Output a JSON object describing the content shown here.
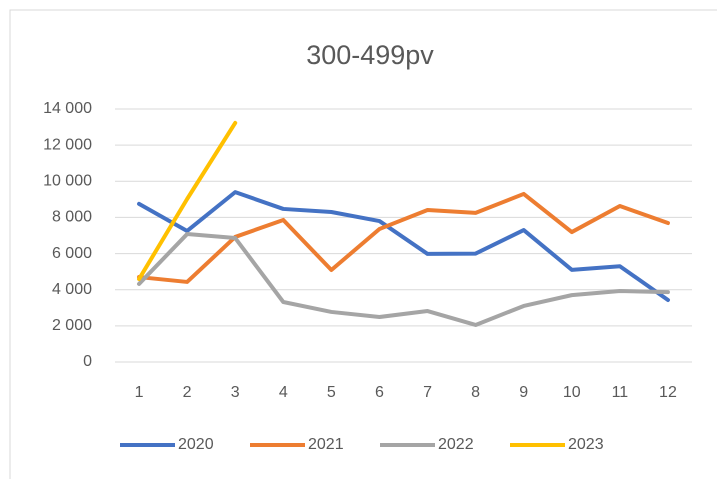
{
  "chart_data": {
    "type": "line",
    "title": "300-499pv",
    "categories": [
      "1",
      "2",
      "3",
      "4",
      "5",
      "6",
      "7",
      "8",
      "9",
      "10",
      "11",
      "12"
    ],
    "series": [
      {
        "name": "2020",
        "color": "#4472c4",
        "values": [
          8750,
          7250,
          9400,
          8470,
          8300,
          7800,
          5980,
          6000,
          7300,
          5100,
          5300,
          3430
        ]
      },
      {
        "name": "2021",
        "color": "#ed7d31",
        "values": [
          4700,
          4430,
          6920,
          7860,
          5090,
          7360,
          8410,
          8250,
          9300,
          7190,
          8630,
          7690
        ]
      },
      {
        "name": "2022",
        "color": "#a5a5a5",
        "values": [
          4320,
          7080,
          6860,
          3320,
          2770,
          2490,
          2820,
          2050,
          3100,
          3700,
          3930,
          3870
        ]
      },
      {
        "name": "2023",
        "color": "#ffc000",
        "values": [
          4590,
          9020,
          13230,
          null,
          null,
          null,
          null,
          null,
          null,
          null,
          null,
          null
        ]
      }
    ],
    "ylim": [
      0,
      14000
    ],
    "yticks": [
      0,
      {
        "value": 2000,
        "label": "2 000"
      },
      {
        "value": 4000,
        "label": "4 000"
      },
      {
        "value": 6000,
        "label": "6 000"
      },
      {
        "value": 8000,
        "label": "8 000"
      },
      {
        "value": 10000,
        "label": "10 000"
      },
      {
        "value": 12000,
        "label": "12 000"
      },
      {
        "value": 14000,
        "label": "14 000"
      }
    ],
    "grid": true,
    "legend": "bottom"
  }
}
